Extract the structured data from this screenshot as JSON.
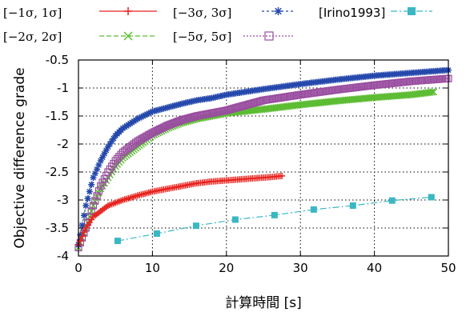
{
  "chart_data": {
    "type": "line",
    "title": "",
    "xlabel": "計算時間 [s]",
    "ylabel": "Objective difference grade",
    "xlim": [
      0,
      50
    ],
    "ylim": [
      -4,
      -0.5
    ],
    "xticks": [
      "0",
      "10",
      "20",
      "30",
      "40",
      "50"
    ],
    "yticks": [
      "-0.5",
      "-1",
      "-1.5",
      "-2",
      "-2.5",
      "-3",
      "-3.5",
      "-4"
    ],
    "grid": "dotted",
    "legend_position": "top, above plot",
    "series": [
      {
        "name": "[−1σ, 1σ]",
        "color": "#e8231e",
        "marker": "plus",
        "x": [
          0,
          0.5,
          1,
          1.5,
          2,
          3,
          4,
          5,
          6,
          8,
          10,
          12,
          14,
          16,
          18,
          20,
          22,
          24,
          26,
          27.5
        ],
        "y": [
          -3.8,
          -3.65,
          -3.5,
          -3.4,
          -3.3,
          -3.2,
          -3.1,
          -3.05,
          -3.0,
          -2.92,
          -2.85,
          -2.8,
          -2.75,
          -2.7,
          -2.67,
          -2.65,
          -2.63,
          -2.61,
          -2.59,
          -2.57
        ]
      },
      {
        "name": "[−2σ, 2σ]",
        "color": "#5cbc32",
        "marker": "cross",
        "x": [
          0,
          1,
          2,
          3,
          4,
          5,
          6,
          7,
          8,
          10,
          12,
          14,
          16,
          18,
          20,
          25,
          30,
          35,
          40,
          45,
          48
        ],
        "y": [
          -3.85,
          -3.5,
          -3.1,
          -2.8,
          -2.6,
          -2.4,
          -2.25,
          -2.15,
          -2.05,
          -1.85,
          -1.72,
          -1.62,
          -1.55,
          -1.5,
          -1.45,
          -1.38,
          -1.3,
          -1.23,
          -1.17,
          -1.12,
          -1.07
        ]
      },
      {
        "name": "[−3σ, 3σ]",
        "color": "#2548ac",
        "marker": "star",
        "x": [
          0,
          1,
          2,
          3,
          4,
          5,
          6,
          8,
          10,
          12,
          14,
          16,
          18,
          20,
          25,
          30,
          35,
          40,
          45,
          50
        ],
        "y": [
          -3.8,
          -3.1,
          -2.6,
          -2.3,
          -2.05,
          -1.85,
          -1.72,
          -1.55,
          -1.42,
          -1.35,
          -1.28,
          -1.22,
          -1.18,
          -1.12,
          -1.02,
          -0.93,
          -0.85,
          -0.78,
          -0.73,
          -0.68
        ]
      },
      {
        "name": "[−5σ, 5σ]",
        "color": "#9a4ea0",
        "marker": "square-open",
        "x": [
          0,
          1,
          2,
          3,
          4,
          5,
          6,
          7,
          8,
          10,
          12,
          14,
          16,
          18,
          20,
          25,
          30,
          35,
          40,
          45,
          50
        ],
        "y": [
          -3.85,
          -3.5,
          -3.1,
          -2.75,
          -2.5,
          -2.3,
          -2.15,
          -2.05,
          -1.95,
          -1.8,
          -1.67,
          -1.57,
          -1.5,
          -1.45,
          -1.4,
          -1.22,
          -1.12,
          -1.03,
          -0.95,
          -0.88,
          -0.83
        ]
      },
      {
        "name": "[Irino1993]",
        "color": "#3ab7c3",
        "marker": "square-filled",
        "x": [
          5.3,
          10.6,
          15.9,
          21.2,
          26.5,
          31.8,
          37.1,
          42.4,
          47.7
        ],
        "y": [
          -3.73,
          -3.6,
          -3.46,
          -3.35,
          -3.27,
          -3.17,
          -3.1,
          -3.01,
          -2.95
        ]
      }
    ]
  }
}
